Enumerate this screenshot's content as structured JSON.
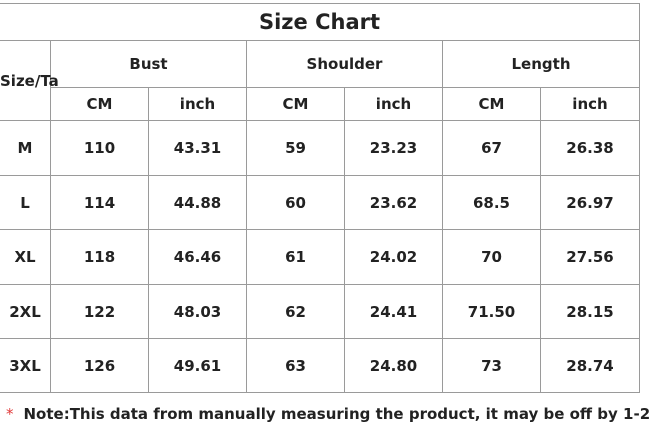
{
  "title": "Size Chart",
  "table": {
    "size_header": "Size/Ta",
    "groups": [
      "Bust",
      "Shoulder",
      "Length"
    ],
    "units": [
      "CM",
      "inch",
      "CM",
      "inch",
      "CM",
      "inch"
    ],
    "rows": [
      [
        "M",
        "110",
        "43.31",
        "59",
        "23.23",
        "67",
        "26.38"
      ],
      [
        "L",
        "114",
        "44.88",
        "60",
        "23.62",
        "68.5",
        "26.97"
      ],
      [
        "XL",
        "118",
        "46.46",
        "61",
        "24.02",
        "70",
        "27.56"
      ],
      [
        "2XL",
        "122",
        "48.03",
        "62",
        "24.41",
        "71.50",
        "28.15"
      ],
      [
        "3XL",
        "126",
        "49.61",
        "63",
        "24.80",
        "73",
        "28.74"
      ]
    ]
  },
  "note": {
    "marker": "*",
    "text": "Note:This data from manually measuring the product, it may be off by 1-2"
  }
}
